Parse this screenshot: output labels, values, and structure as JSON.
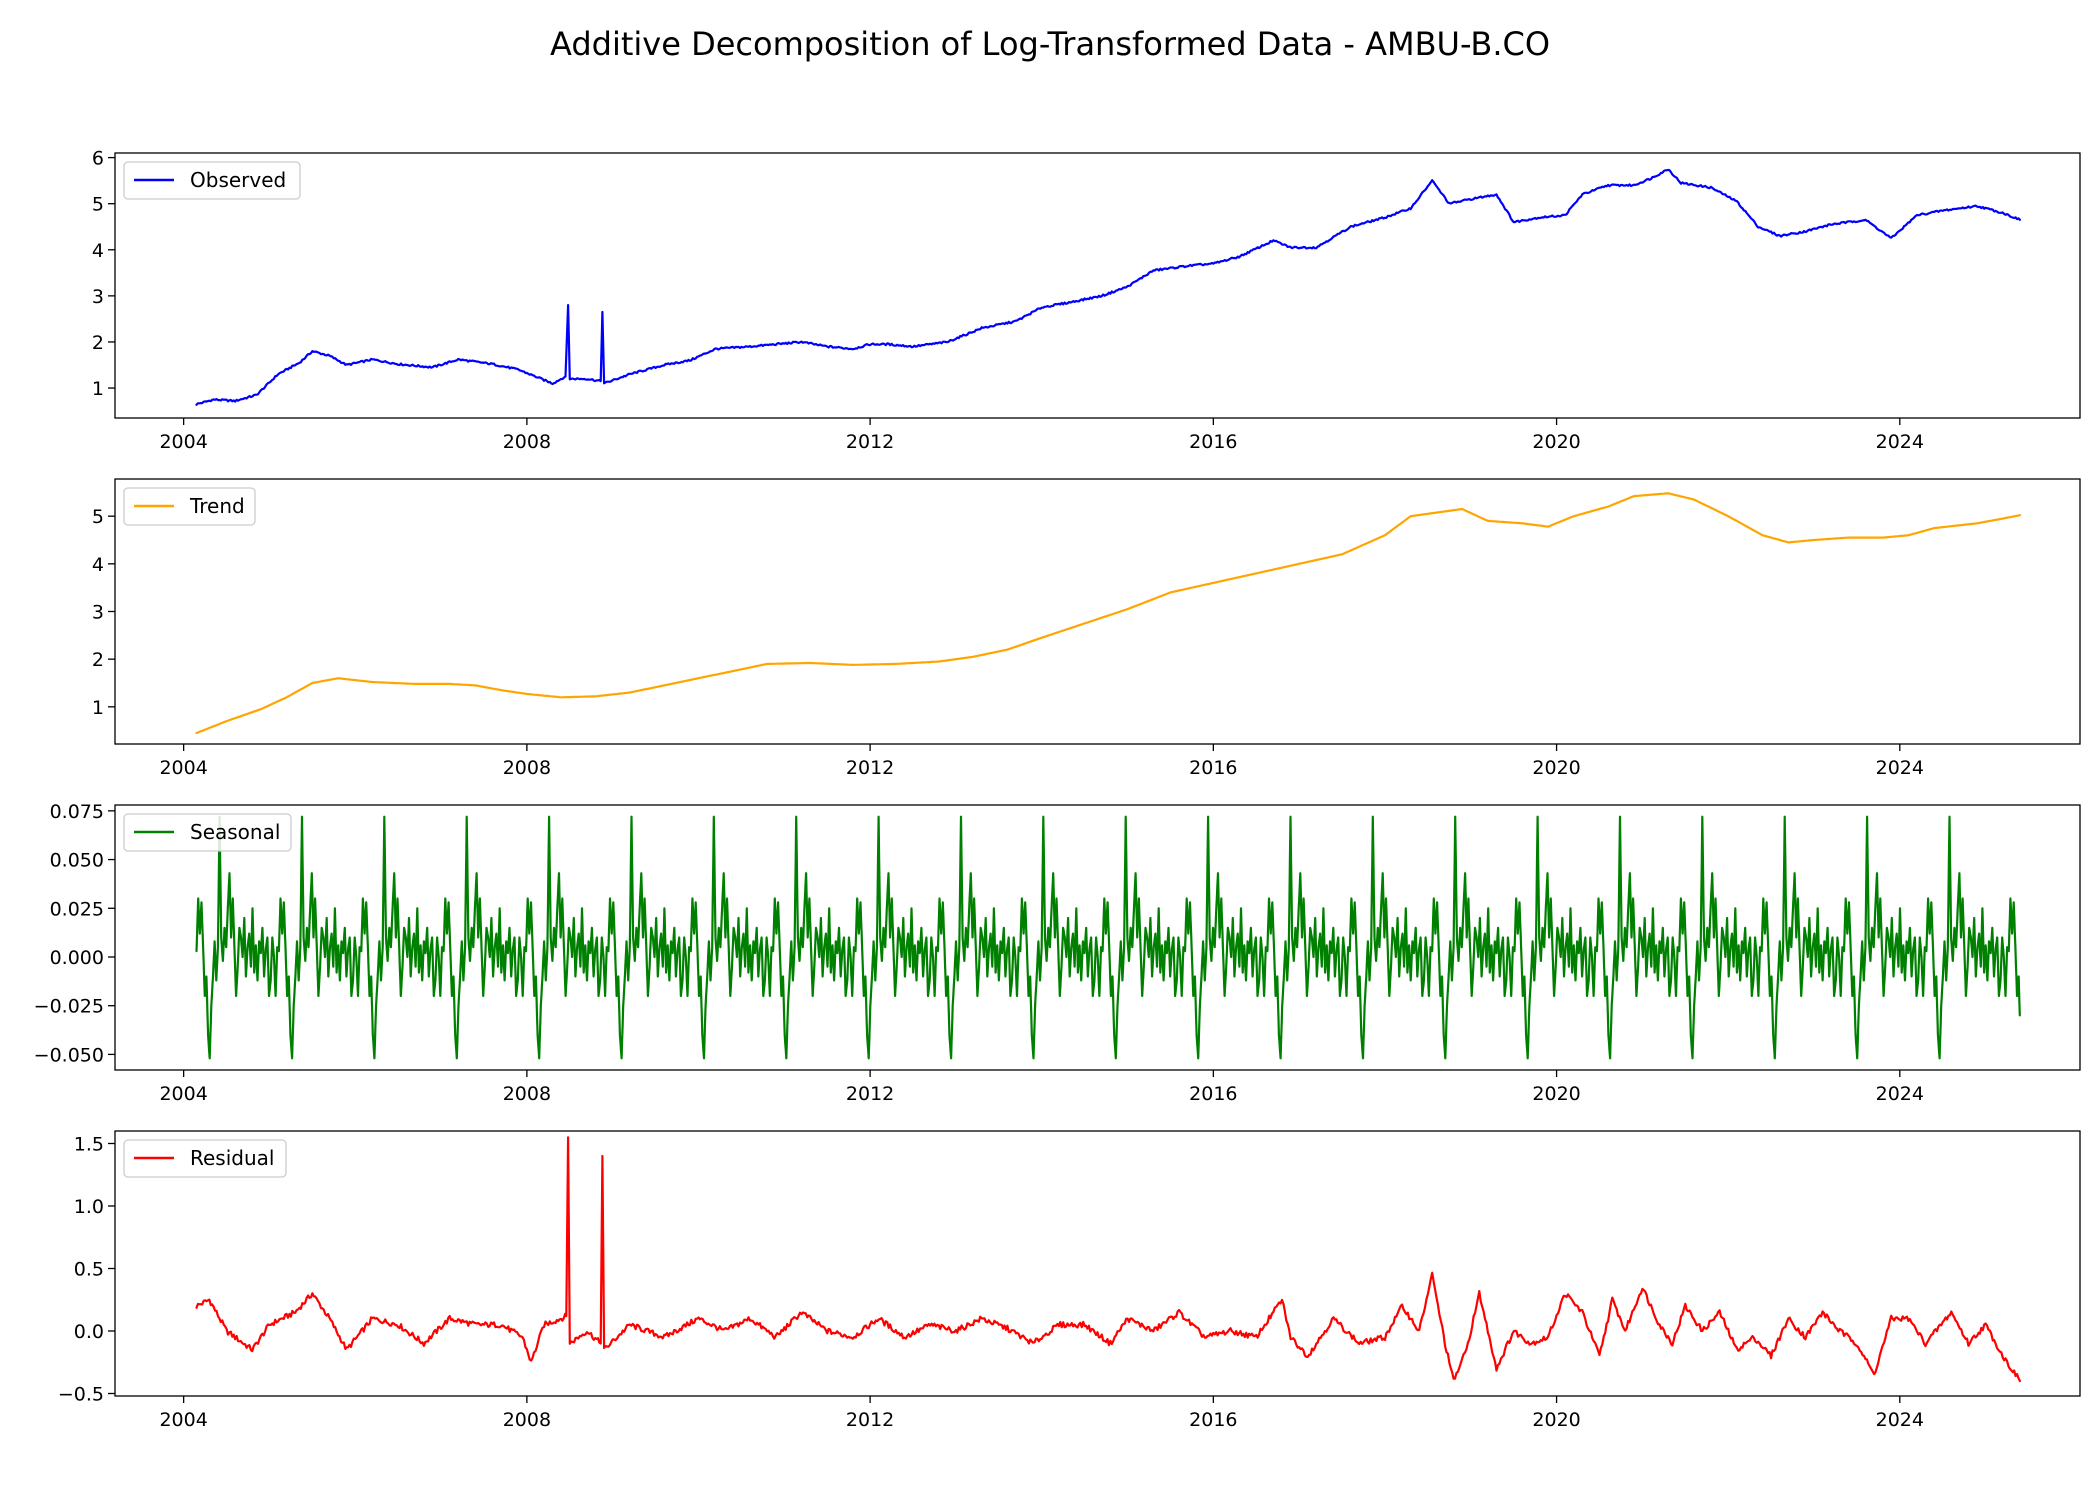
{
  "figure": {
    "title": "Additive Decomposition of Log-Transformed Data - AMBU-B.CO"
  },
  "chart_data": [
    {
      "type": "line",
      "id": "observed",
      "series": [
        {
          "name": "Observed",
          "color": "#0000ff",
          "x": [
            2004.15,
            2004.35,
            2004.6,
            2004.85,
            2005.1,
            2005.35,
            2005.5,
            2005.7,
            2005.9,
            2006.2,
            2006.5,
            2006.9,
            2007.2,
            2007.6,
            2007.9,
            2008.1,
            2008.3,
            2008.45,
            2008.48,
            2008.5,
            2008.7,
            2008.86,
            2008.88,
            2008.9,
            2009.2,
            2009.6,
            2009.9,
            2010.2,
            2010.6,
            2010.9,
            2011.2,
            2011.5,
            2011.8,
            2012.0,
            2012.2,
            2012.5,
            2012.9,
            2013.3,
            2013.7,
            2014.0,
            2014.3,
            2014.7,
            2015.0,
            2015.3,
            2015.7,
            2016.0,
            2016.3,
            2016.7,
            2016.9,
            2017.2,
            2017.6,
            2018.0,
            2018.3,
            2018.55,
            2018.75,
            2019.0,
            2019.3,
            2019.5,
            2019.8,
            2020.1,
            2020.3,
            2020.6,
            2020.9,
            2021.1,
            2021.3,
            2021.45,
            2021.8,
            2022.1,
            2022.35,
            2022.6,
            2022.9,
            2023.2,
            2023.6,
            2023.9,
            2024.2,
            2024.5,
            2024.9,
            2025.2,
            2025.4
          ],
          "y": [
            0.65,
            0.75,
            0.72,
            0.85,
            1.3,
            1.55,
            1.8,
            1.7,
            1.5,
            1.62,
            1.52,
            1.45,
            1.62,
            1.52,
            1.4,
            1.25,
            1.1,
            1.25,
            2.8,
            1.2,
            1.2,
            1.15,
            2.65,
            1.1,
            1.3,
            1.5,
            1.6,
            1.85,
            1.9,
            1.95,
            2.0,
            1.9,
            1.85,
            1.95,
            1.95,
            1.9,
            2.0,
            2.3,
            2.45,
            2.75,
            2.85,
            3.0,
            3.2,
            3.55,
            3.65,
            3.7,
            3.85,
            4.2,
            4.05,
            4.05,
            4.5,
            4.7,
            4.9,
            5.5,
            5.0,
            5.1,
            5.2,
            4.6,
            4.7,
            4.75,
            5.2,
            5.4,
            5.4,
            5.55,
            5.75,
            5.45,
            5.35,
            5.05,
            4.5,
            4.3,
            4.4,
            4.55,
            4.65,
            4.25,
            4.75,
            4.85,
            4.95,
            4.8,
            4.65
          ]
        }
      ],
      "xlim": [
        2003.2,
        2026.1
      ],
      "ylim": [
        0.35,
        6.1
      ],
      "yticks": [
        "1",
        "2",
        "3",
        "4",
        "5",
        "6"
      ],
      "xticks": [
        "2004",
        "2008",
        "2012",
        "2016",
        "2020",
        "2024"
      ],
      "legend_position": "upper-left"
    },
    {
      "type": "line",
      "id": "trend",
      "series": [
        {
          "name": "Trend",
          "color": "#ffa500",
          "x": [
            2004.15,
            2004.5,
            2004.9,
            2005.2,
            2005.5,
            2005.8,
            2006.2,
            2006.7,
            2007.1,
            2007.4,
            2007.7,
            2008.0,
            2008.4,
            2008.8,
            2009.2,
            2009.6,
            2010.0,
            2010.4,
            2010.8,
            2011.3,
            2011.8,
            2012.3,
            2012.8,
            2013.2,
            2013.6,
            2014.0,
            2014.5,
            2015.0,
            2015.5,
            2016.0,
            2016.5,
            2017.0,
            2017.5,
            2018.0,
            2018.3,
            2018.9,
            2019.2,
            2019.6,
            2019.9,
            2020.2,
            2020.6,
            2020.9,
            2021.3,
            2021.6,
            2022.0,
            2022.4,
            2022.7,
            2023.0,
            2023.4,
            2023.8,
            2024.1,
            2024.4,
            2024.9,
            2025.2,
            2025.4
          ],
          "y": [
            0.45,
            0.7,
            0.95,
            1.2,
            1.5,
            1.6,
            1.52,
            1.48,
            1.48,
            1.45,
            1.35,
            1.27,
            1.2,
            1.22,
            1.3,
            1.45,
            1.6,
            1.75,
            1.9,
            1.92,
            1.88,
            1.9,
            1.95,
            2.05,
            2.2,
            2.45,
            2.75,
            3.05,
            3.4,
            3.6,
            3.8,
            4.0,
            4.2,
            4.6,
            5.0,
            5.15,
            4.9,
            4.85,
            4.78,
            5.0,
            5.2,
            5.42,
            5.48,
            5.35,
            5.0,
            4.6,
            4.45,
            4.5,
            4.55,
            4.55,
            4.6,
            4.75,
            4.85,
            4.95,
            5.02
          ]
        }
      ],
      "xlim": [
        2003.2,
        2026.1
      ],
      "ylim": [
        0.22,
        5.78
      ],
      "yticks": [
        "1",
        "2",
        "3",
        "4",
        "5"
      ],
      "xticks": [
        "2004",
        "2008",
        "2012",
        "2016",
        "2020",
        "2024"
      ],
      "legend_position": "upper-left"
    },
    {
      "type": "line",
      "id": "seasonal",
      "series": [
        {
          "name": "Seasonal",
          "color": "#008000",
          "period": 0.96,
          "start": 2004.15,
          "end": 2025.4,
          "cycle_phase": [
            0.0,
            0.02,
            0.04,
            0.06,
            0.08,
            0.1,
            0.12,
            0.14,
            0.16,
            0.18,
            0.2,
            0.22,
            0.24,
            0.26,
            0.28,
            0.3,
            0.32,
            0.34,
            0.36,
            0.38,
            0.4,
            0.42,
            0.44,
            0.46,
            0.48,
            0.5,
            0.52,
            0.54,
            0.56,
            0.58,
            0.6,
            0.62,
            0.64,
            0.66,
            0.68,
            0.7,
            0.72,
            0.74,
            0.76,
            0.78,
            0.8,
            0.82,
            0.84,
            0.86,
            0.88,
            0.9,
            0.92,
            0.94,
            0.96,
            0.98,
            1.0
          ],
          "cycle_values": [
            0.003,
            0.03,
            0.012,
            0.028,
            0.005,
            -0.02,
            -0.01,
            -0.04,
            -0.052,
            -0.025,
            -0.01,
            0.008,
            -0.012,
            0.005,
            0.072,
            0.01,
            -0.002,
            0.015,
            0.005,
            0.025,
            0.043,
            0.01,
            0.03,
            0.005,
            -0.02,
            -0.005,
            0.015,
            0.01,
            0.0,
            0.02,
            -0.01,
            0.005,
            0.012,
            -0.005,
            0.025,
            -0.008,
            0.006,
            -0.012,
            0.008,
            0.002,
            0.015,
            -0.01,
            0.004,
            0.01,
            -0.02,
            -0.012,
            0.01,
            0.0,
            -0.02,
            0.005,
            0.003
          ]
        }
      ],
      "xlim": [
        2003.2,
        2026.1
      ],
      "ylim": [
        -0.058,
        0.078
      ],
      "yticks": [
        "0.075",
        "0.050",
        "0.025",
        "0.000",
        "−0.025",
        "−0.050"
      ],
      "ytick_values": [
        0.075,
        0.05,
        0.025,
        0.0,
        -0.025,
        -0.05
      ],
      "xticks": [
        "2004",
        "2008",
        "2012",
        "2016",
        "2020",
        "2024"
      ],
      "legend_position": "upper-left"
    },
    {
      "type": "line",
      "id": "residual",
      "series": [
        {
          "name": "Residual",
          "color": "#ff0000",
          "x": [
            2004.15,
            2004.3,
            2004.5,
            2004.8,
            2005.0,
            2005.3,
            2005.5,
            2005.7,
            2005.9,
            2006.2,
            2006.5,
            2006.8,
            2007.1,
            2007.4,
            2007.7,
            2007.95,
            2008.05,
            2008.2,
            2008.4,
            2008.46,
            2008.48,
            2008.5,
            2008.7,
            2008.86,
            2008.88,
            2008.9,
            2009.2,
            2009.6,
            2010.0,
            2010.3,
            2010.6,
            2010.9,
            2011.2,
            2011.5,
            2011.8,
            2012.1,
            2012.4,
            2012.7,
            2013.0,
            2013.3,
            2013.6,
            2013.9,
            2014.2,
            2014.5,
            2014.8,
            2015.0,
            2015.3,
            2015.6,
            2015.9,
            2016.2,
            2016.5,
            2016.8,
            2016.9,
            2017.1,
            2017.4,
            2017.7,
            2018.0,
            2018.2,
            2018.4,
            2018.55,
            2018.7,
            2018.8,
            2018.95,
            2019.1,
            2019.3,
            2019.5,
            2019.7,
            2019.9,
            2020.1,
            2020.3,
            2020.5,
            2020.65,
            2020.8,
            2021.0,
            2021.2,
            2021.35,
            2021.5,
            2021.7,
            2021.9,
            2022.1,
            2022.3,
            2022.5,
            2022.7,
            2022.9,
            2023.1,
            2023.3,
            2023.5,
            2023.7,
            2023.9,
            2024.1,
            2024.3,
            2024.6,
            2024.8,
            2025.0,
            2025.2,
            2025.4
          ],
          "y": [
            0.2,
            0.25,
            0.0,
            -0.15,
            0.05,
            0.15,
            0.3,
            0.1,
            -0.15,
            0.1,
            0.05,
            -0.1,
            0.1,
            0.05,
            0.05,
            -0.05,
            -0.25,
            0.05,
            0.1,
            0.12,
            1.55,
            -0.1,
            0.0,
            -0.1,
            1.4,
            -0.15,
            0.05,
            -0.05,
            0.1,
            0.0,
            0.1,
            -0.05,
            0.15,
            0.0,
            -0.05,
            0.1,
            -0.05,
            0.05,
            0.0,
            0.1,
            0.02,
            -0.1,
            0.05,
            0.05,
            -0.1,
            0.1,
            0.0,
            0.15,
            -0.05,
            0.0,
            -0.05,
            0.25,
            -0.05,
            -0.2,
            0.1,
            -0.1,
            -0.05,
            0.2,
            0.0,
            0.45,
            -0.1,
            -0.4,
            -0.15,
            0.3,
            -0.3,
            0.0,
            -0.1,
            -0.05,
            0.3,
            0.15,
            -0.2,
            0.25,
            0.0,
            0.35,
            0.05,
            -0.1,
            0.2,
            0.0,
            0.15,
            -0.15,
            -0.05,
            -0.2,
            0.1,
            -0.05,
            0.15,
            0.0,
            -0.1,
            -0.35,
            0.1,
            0.1,
            -0.1,
            0.15,
            -0.1,
            0.05,
            -0.2,
            -0.4
          ]
        }
      ],
      "xlim": [
        2003.2,
        2026.1
      ],
      "ylim": [
        -0.52,
        1.6
      ],
      "yticks": [
        "1.5",
        "1.0",
        "0.5",
        "0.0",
        "−0.5"
      ],
      "ytick_values": [
        1.5,
        1.0,
        0.5,
        0.0,
        -0.5
      ],
      "xticks": [
        "2004",
        "2008",
        "2012",
        "2016",
        "2020",
        "2024"
      ],
      "legend_position": "upper-left"
    }
  ]
}
